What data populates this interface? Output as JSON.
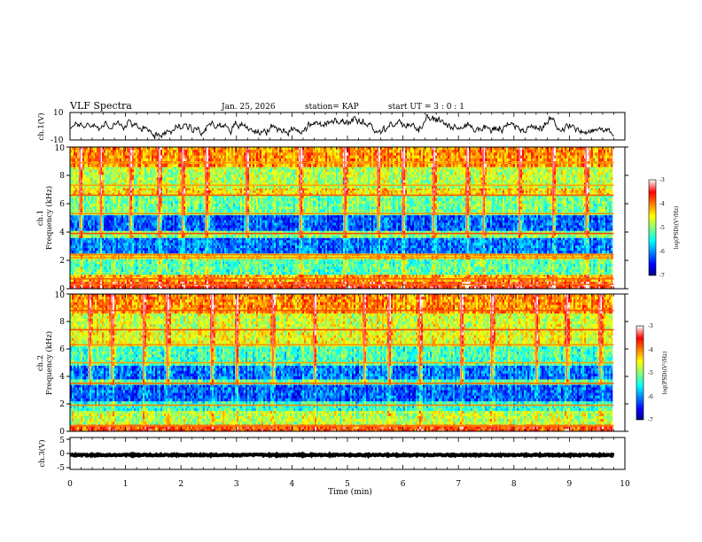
{
  "header": {
    "title": "VLF Spectra",
    "date": "Jan. 25, 2026",
    "station": "station= KAP",
    "start": "start  UT =  3 : 0  : 1"
  },
  "chart_data": [
    {
      "type": "line",
      "panel": "ch1-waveform",
      "ylabel": "ch.1(V)",
      "ylim": [
        -10,
        10
      ],
      "yticks": [
        "10",
        "-10"
      ],
      "xlim": [
        0,
        10
      ],
      "signal": "noise-like voltage trace spanning roughly -10 V to +10 V from 0 to 9.8 min"
    },
    {
      "type": "heatmap",
      "panel": "ch1-spectrogram",
      "ylabel_line1": "ch.1",
      "ylabel_line2": "Frequency (kHz)",
      "ylim": [
        0,
        10
      ],
      "yticks": [
        "0",
        "2",
        "4",
        "6",
        "8",
        "10"
      ],
      "xlim": [
        0,
        9.8
      ],
      "colorbar": {
        "label": "log(PSD)(V²/Hz)",
        "range": [
          -7,
          -3
        ],
        "ticks": [
          "-3",
          "-4",
          "-5",
          "-6",
          "-7"
        ]
      },
      "bands": [
        {
          "f_min": 0.0,
          "f_max": 0.5,
          "level": -3.6
        },
        {
          "f_min": 0.5,
          "f_max": 1.0,
          "level": -4.2
        },
        {
          "f_min": 1.0,
          "f_max": 2.1,
          "level": -5.2
        },
        {
          "f_min": 2.1,
          "f_max": 2.5,
          "level": -4.4
        },
        {
          "f_min": 2.5,
          "f_max": 3.6,
          "level": -6.1
        },
        {
          "f_min": 3.6,
          "f_max": 4.1,
          "level": -5.0
        },
        {
          "f_min": 4.1,
          "f_max": 5.2,
          "level": -6.2
        },
        {
          "f_min": 5.2,
          "f_max": 6.6,
          "level": -5.1
        },
        {
          "f_min": 6.6,
          "f_max": 7.1,
          "level": -4.4
        },
        {
          "f_min": 7.1,
          "f_max": 8.6,
          "level": -4.8
        },
        {
          "f_min": 8.6,
          "f_max": 10.0,
          "level": -4.1
        }
      ],
      "lines_khz": [
        0.3,
        0.7,
        2.2,
        2.4,
        3.9,
        5.3,
        6.6,
        7.3,
        8.9
      ],
      "bursts_min": [
        0.18,
        0.55,
        1.08,
        1.6,
        2.02,
        2.45,
        3.18,
        4.15,
        4.95,
        5.55,
        6.0,
        6.55,
        7.15,
        7.45,
        8.1,
        8.7,
        9.3
      ]
    },
    {
      "type": "heatmap",
      "panel": "ch2-spectrogram",
      "ylabel_line1": "ch.2",
      "ylabel_line2": "Frequency (kHz)",
      "ylim": [
        0,
        10
      ],
      "yticks": [
        "0",
        "2",
        "4",
        "6",
        "8",
        "10"
      ],
      "xlim": [
        0,
        9.8
      ],
      "colorbar": {
        "label": "log(PSD)(V²/Hz)",
        "range": [
          -7,
          -3
        ],
        "ticks": [
          "-3",
          "-4",
          "-5",
          "-6",
          "-7"
        ]
      },
      "bands": [
        {
          "f_min": 0.0,
          "f_max": 0.5,
          "level": -3.8
        },
        {
          "f_min": 0.5,
          "f_max": 1.5,
          "level": -4.8
        },
        {
          "f_min": 1.5,
          "f_max": 2.2,
          "level": -5.4
        },
        {
          "f_min": 2.2,
          "f_max": 3.4,
          "level": -6.2
        },
        {
          "f_min": 3.4,
          "f_max": 3.8,
          "level": -5.2
        },
        {
          "f_min": 3.8,
          "f_max": 4.8,
          "level": -6.1
        },
        {
          "f_min": 4.8,
          "f_max": 6.2,
          "level": -5.3
        },
        {
          "f_min": 6.2,
          "f_max": 7.4,
          "level": -4.6
        },
        {
          "f_min": 7.4,
          "f_max": 8.6,
          "level": -4.7
        },
        {
          "f_min": 8.6,
          "f_max": 10.0,
          "level": -4.1
        }
      ],
      "lines_khz": [
        0.4,
        1.9,
        3.5,
        5.0,
        6.3,
        7.4,
        8.8
      ],
      "bursts_min": [
        0.35,
        0.75,
        1.32,
        1.75,
        2.55,
        3.0,
        3.65,
        4.4,
        5.3,
        5.75,
        6.3,
        7.05,
        7.6,
        8.4,
        8.95,
        9.55
      ]
    },
    {
      "type": "line",
      "panel": "ch3-waveform",
      "ylabel": "ch.3(V)",
      "ylim": [
        -5,
        5
      ],
      "yticks": [
        "5",
        "0",
        "-5"
      ],
      "xlim": [
        0,
        10
      ],
      "signal": "flat trace near -0.5 V with very small noise, 0 to 9.8 min"
    }
  ],
  "x_axis": {
    "label": "Time (min)",
    "ticks": [
      "0",
      "1",
      "2",
      "3",
      "4",
      "5",
      "6",
      "7",
      "8",
      "9",
      "10"
    ]
  }
}
